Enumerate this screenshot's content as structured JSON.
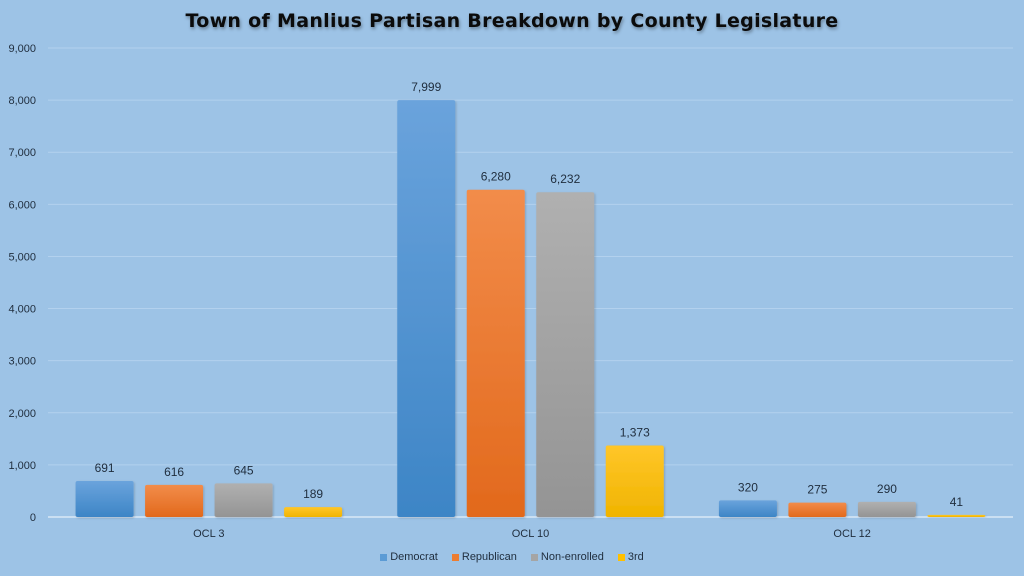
{
  "chart_data": {
    "type": "bar",
    "title": "Town of Manlius Partisan Breakdown by County Legislature",
    "xlabel": "",
    "ylabel": "",
    "ylim": [
      0,
      9000
    ],
    "yticks": [
      0,
      1000,
      2000,
      3000,
      4000,
      5000,
      6000,
      7000,
      8000,
      9000
    ],
    "ytick_labels": [
      "0",
      "1,000",
      "2,000",
      "3,000",
      "4,000",
      "5,000",
      "6,000",
      "7,000",
      "8,000",
      "9,000"
    ],
    "categories": [
      "OCL 3",
      "OCL 10",
      "OCL 12"
    ],
    "series": [
      {
        "name": "Democrat",
        "color": "#5b9bd5",
        "values": [
          691,
          7999,
          320
        ],
        "labels": [
          "691",
          "7,999",
          "320"
        ]
      },
      {
        "name": "Republican",
        "color": "#ed7d31",
        "values": [
          616,
          6280,
          275
        ],
        "labels": [
          "616",
          "6,280",
          "275"
        ]
      },
      {
        "name": "Non-enrolled",
        "color": "#a5a5a5",
        "values": [
          645,
          6232,
          290
        ],
        "labels": [
          "645",
          "6,232",
          "290"
        ]
      },
      {
        "name": "3rd",
        "color": "#ffc000",
        "values": [
          189,
          1373,
          41
        ],
        "labels": [
          "189",
          "1,373",
          "41"
        ]
      }
    ],
    "grid": true,
    "legend_position": "bottom"
  }
}
